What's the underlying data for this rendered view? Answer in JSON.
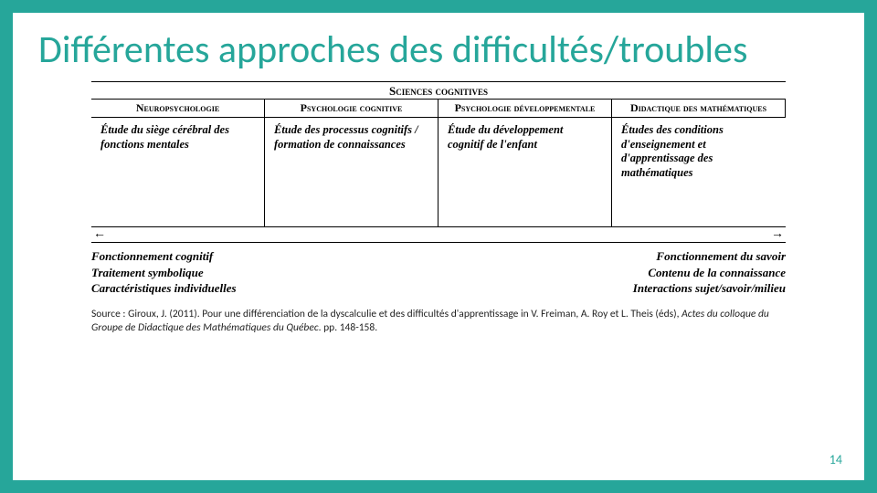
{
  "title": "Différentes approches des difficultés/troubles",
  "superHeader": "Sciences cognitives",
  "columns": [
    {
      "header": "Neuropsychologie",
      "desc": "Étude du siège cérébral des fonctions mentales"
    },
    {
      "header": "Psychologie cognitive",
      "desc": "Étude des processus cognitifs / formation de connaissances"
    },
    {
      "header": "Psychologie développementale",
      "desc": "Étude du développement cognitif de l'enfant"
    },
    {
      "header": "Didactique des mathématiques",
      "desc": "Études des conditions d'enseignement et d'apprentissage des mathématiques"
    }
  ],
  "arrows": {
    "left": "←",
    "right": "→"
  },
  "bottomLeft": [
    "Fonctionnement cognitif",
    "Traitement symbolique",
    "Caractéristiques individuelles"
  ],
  "bottomRight": [
    "Fonctionnement du savoir",
    "Contenu de la connaissance",
    "Interactions sujet/savoir/milieu"
  ],
  "source": {
    "prefix": "Source : Giroux, J. (2011). Pour une différenciation de la dyscalculie et des difficultés d'apprentissage in V. Freiman, A. Roy et L. Theis (éds), ",
    "italic": "Actes du colloque du Groupe de Didactique des Mathématiques du Québec",
    "suffix": ". pp. 148-158."
  },
  "pageNumber": "14",
  "colors": {
    "accent": "#26a69a"
  }
}
